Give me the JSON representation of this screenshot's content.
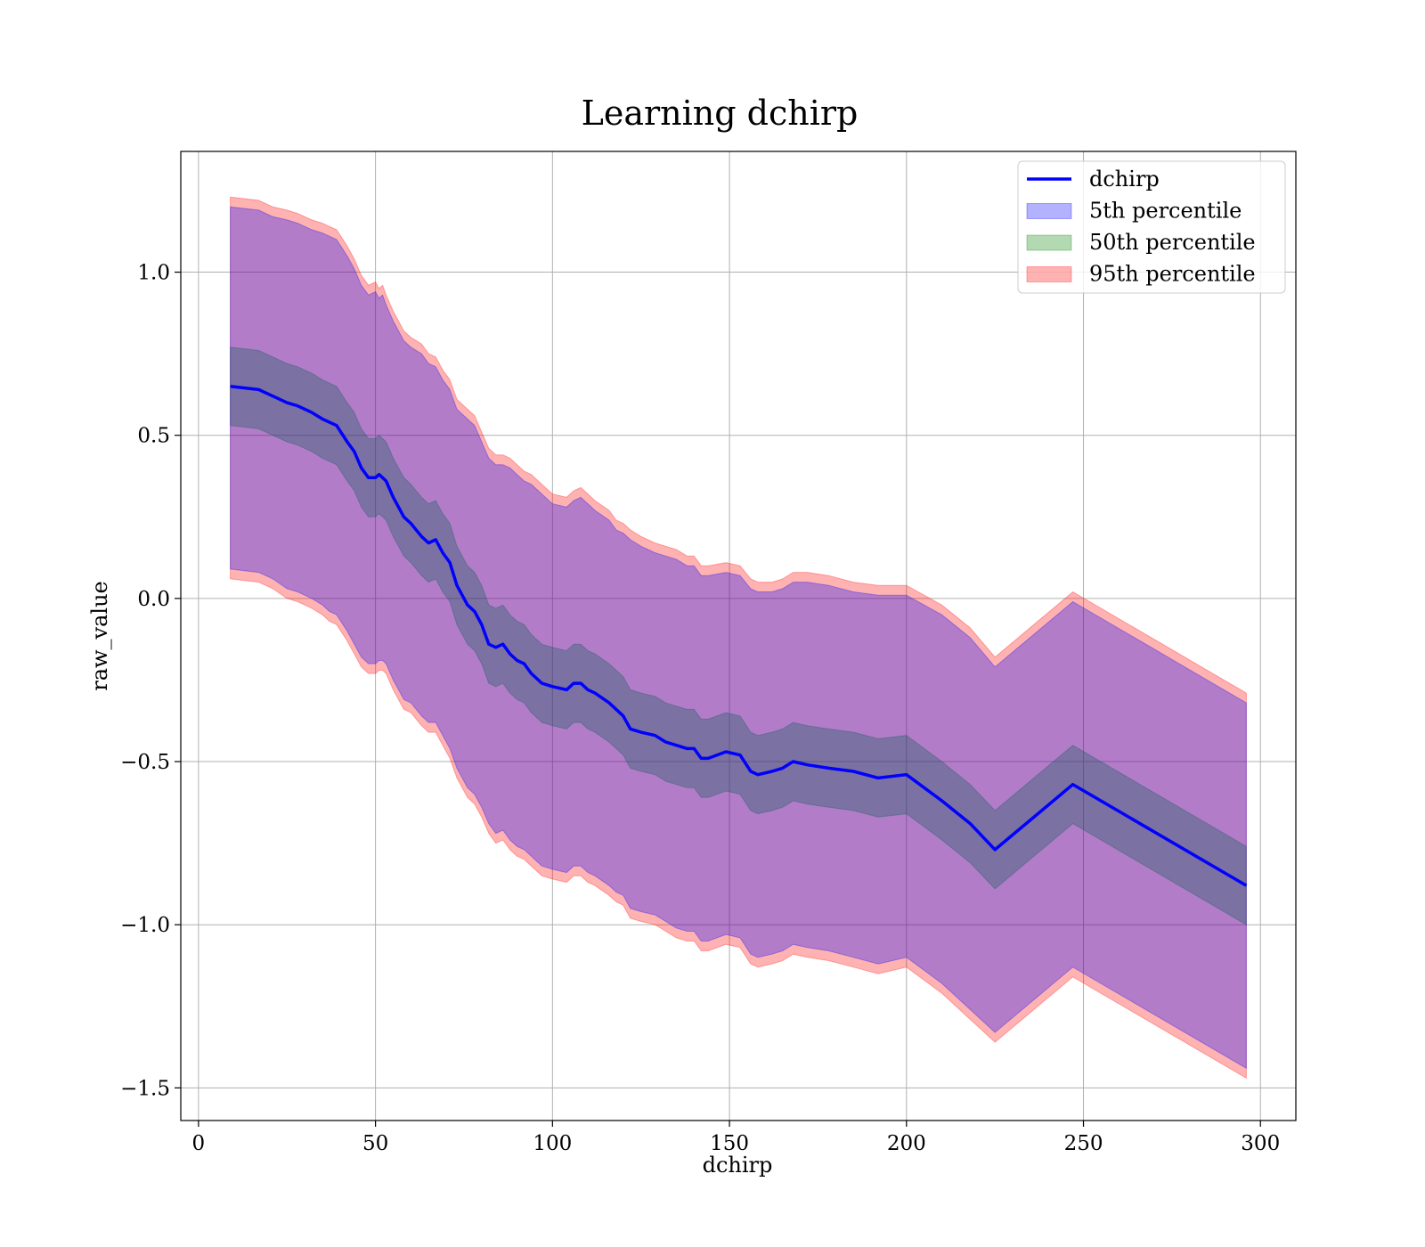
{
  "chart_data": {
    "type": "line",
    "title": "Learning dchirp",
    "xlabel": "dchirp",
    "ylabel": "raw_value",
    "xlim": [
      -5,
      310
    ],
    "ylim": [
      -1.6,
      1.37
    ],
    "xticks": [
      0,
      50,
      100,
      150,
      200,
      250,
      300
    ],
    "xtick_labels": [
      "0",
      "50",
      "100",
      "150",
      "200",
      "250",
      "300"
    ],
    "yticks": [
      1.0,
      0.5,
      0.0,
      -0.5,
      -1.0,
      -1.5
    ],
    "ytick_labels": [
      "1.0",
      "0.5",
      "0.0",
      "−0.5",
      "−1.0",
      "−1.5"
    ],
    "grid": true,
    "legend_position": "top-right",
    "legend": [
      {
        "label": "dchirp",
        "kind": "line",
        "color": "#0000ff"
      },
      {
        "label": "5th percentile",
        "kind": "patch",
        "color": "#0000ff"
      },
      {
        "label": "50th percentile",
        "kind": "patch",
        "color": "#008000"
      },
      {
        "label": "95th percentile",
        "kind": "patch",
        "color": "#ff0000"
      }
    ],
    "x": [
      9,
      17,
      21,
      25,
      28,
      32,
      35,
      37,
      39,
      42,
      44,
      46,
      48,
      50,
      51,
      52,
      53,
      55,
      56,
      58,
      60,
      63,
      65,
      67,
      69,
      71,
      73,
      76,
      78,
      80,
      82,
      84,
      86,
      88,
      90,
      92,
      94,
      97,
      100,
      104,
      106,
      108,
      110,
      112,
      116,
      118,
      120,
      122,
      125,
      129,
      132,
      135,
      138,
      140,
      142,
      144,
      149,
      153,
      156,
      158,
      162,
      165,
      168,
      172,
      178,
      185,
      192,
      200,
      210,
      218,
      225,
      247,
      296
    ],
    "series": [
      {
        "name": "dchirp",
        "kind": "line",
        "color": "#0000ff",
        "values": [
          0.65,
          0.64,
          0.62,
          0.6,
          0.59,
          0.57,
          0.55,
          0.54,
          0.53,
          0.48,
          0.45,
          0.4,
          0.37,
          0.37,
          0.38,
          0.37,
          0.36,
          0.31,
          0.29,
          0.25,
          0.23,
          0.19,
          0.17,
          0.18,
          0.14,
          0.11,
          0.04,
          -0.02,
          -0.04,
          -0.08,
          -0.14,
          -0.15,
          -0.14,
          -0.17,
          -0.19,
          -0.2,
          -0.23,
          -0.26,
          -0.27,
          -0.28,
          -0.26,
          -0.26,
          -0.28,
          -0.29,
          -0.32,
          -0.34,
          -0.36,
          -0.4,
          -0.41,
          -0.42,
          -0.44,
          -0.45,
          -0.46,
          -0.46,
          -0.49,
          -0.49,
          -0.47,
          -0.48,
          -0.53,
          -0.54,
          -0.53,
          -0.52,
          -0.5,
          -0.51,
          -0.52,
          -0.53,
          -0.55,
          -0.54,
          -0.62,
          -0.69,
          -0.77,
          -0.57,
          -0.88
        ]
      },
      {
        "name": "5th percentile",
        "kind": "band",
        "color": "#0000ff",
        "upper": [
          1.2,
          1.19,
          1.17,
          1.16,
          1.15,
          1.13,
          1.12,
          1.11,
          1.1,
          1.05,
          1.01,
          0.96,
          0.93,
          0.94,
          0.92,
          0.93,
          0.9,
          0.85,
          0.83,
          0.79,
          0.77,
          0.75,
          0.72,
          0.71,
          0.67,
          0.64,
          0.58,
          0.55,
          0.53,
          0.48,
          0.43,
          0.41,
          0.41,
          0.4,
          0.38,
          0.36,
          0.35,
          0.32,
          0.29,
          0.28,
          0.3,
          0.31,
          0.29,
          0.27,
          0.24,
          0.21,
          0.2,
          0.18,
          0.16,
          0.14,
          0.13,
          0.12,
          0.1,
          0.1,
          0.07,
          0.07,
          0.08,
          0.07,
          0.03,
          0.02,
          0.02,
          0.03,
          0.05,
          0.05,
          0.04,
          0.02,
          0.01,
          0.01,
          -0.05,
          -0.12,
          -0.21,
          -0.01,
          -0.32
        ],
        "lower": [
          0.09,
          0.08,
          0.06,
          0.03,
          0.02,
          0.0,
          -0.02,
          -0.04,
          -0.05,
          -0.1,
          -0.14,
          -0.18,
          -0.2,
          -0.2,
          -0.19,
          -0.19,
          -0.2,
          -0.25,
          -0.27,
          -0.31,
          -0.32,
          -0.36,
          -0.38,
          -0.38,
          -0.42,
          -0.46,
          -0.52,
          -0.58,
          -0.6,
          -0.64,
          -0.69,
          -0.72,
          -0.71,
          -0.74,
          -0.76,
          -0.77,
          -0.79,
          -0.82,
          -0.83,
          -0.84,
          -0.82,
          -0.82,
          -0.84,
          -0.85,
          -0.88,
          -0.9,
          -0.91,
          -0.95,
          -0.96,
          -0.97,
          -0.99,
          -1.01,
          -1.02,
          -1.02,
          -1.05,
          -1.05,
          -1.03,
          -1.04,
          -1.09,
          -1.1,
          -1.09,
          -1.08,
          -1.06,
          -1.07,
          -1.08,
          -1.1,
          -1.12,
          -1.1,
          -1.18,
          -1.26,
          -1.33,
          -1.13,
          -1.44
        ]
      },
      {
        "name": "50th percentile",
        "kind": "band",
        "color": "#008000",
        "upper": [
          0.77,
          0.76,
          0.74,
          0.72,
          0.71,
          0.69,
          0.67,
          0.66,
          0.65,
          0.6,
          0.57,
          0.52,
          0.49,
          0.49,
          0.5,
          0.49,
          0.48,
          0.43,
          0.41,
          0.37,
          0.35,
          0.31,
          0.29,
          0.3,
          0.26,
          0.23,
          0.16,
          0.1,
          0.08,
          0.04,
          -0.02,
          -0.03,
          -0.02,
          -0.05,
          -0.07,
          -0.08,
          -0.11,
          -0.14,
          -0.15,
          -0.16,
          -0.14,
          -0.14,
          -0.16,
          -0.17,
          -0.2,
          -0.22,
          -0.24,
          -0.28,
          -0.29,
          -0.3,
          -0.32,
          -0.33,
          -0.34,
          -0.34,
          -0.37,
          -0.37,
          -0.35,
          -0.36,
          -0.41,
          -0.42,
          -0.41,
          -0.4,
          -0.38,
          -0.39,
          -0.4,
          -0.41,
          -0.43,
          -0.42,
          -0.5,
          -0.57,
          -0.65,
          -0.45,
          -0.76
        ],
        "lower": [
          0.53,
          0.52,
          0.5,
          0.48,
          0.47,
          0.45,
          0.43,
          0.42,
          0.41,
          0.36,
          0.33,
          0.28,
          0.25,
          0.25,
          0.26,
          0.25,
          0.24,
          0.19,
          0.17,
          0.13,
          0.11,
          0.07,
          0.05,
          0.06,
          0.02,
          -0.01,
          -0.08,
          -0.14,
          -0.16,
          -0.2,
          -0.26,
          -0.27,
          -0.26,
          -0.29,
          -0.31,
          -0.32,
          -0.35,
          -0.38,
          -0.39,
          -0.4,
          -0.38,
          -0.38,
          -0.4,
          -0.41,
          -0.44,
          -0.46,
          -0.48,
          -0.52,
          -0.53,
          -0.54,
          -0.56,
          -0.57,
          -0.58,
          -0.58,
          -0.61,
          -0.61,
          -0.59,
          -0.6,
          -0.65,
          -0.66,
          -0.65,
          -0.64,
          -0.62,
          -0.63,
          -0.64,
          -0.65,
          -0.67,
          -0.66,
          -0.74,
          -0.81,
          -0.89,
          -0.69,
          -1.0
        ]
      },
      {
        "name": "95th percentile",
        "kind": "band",
        "color": "#ff0000",
        "upper": [
          1.23,
          1.22,
          1.2,
          1.19,
          1.18,
          1.16,
          1.15,
          1.14,
          1.13,
          1.08,
          1.04,
          0.99,
          0.96,
          0.97,
          0.95,
          0.96,
          0.93,
          0.88,
          0.86,
          0.82,
          0.8,
          0.78,
          0.75,
          0.74,
          0.7,
          0.67,
          0.61,
          0.58,
          0.56,
          0.51,
          0.46,
          0.44,
          0.44,
          0.43,
          0.41,
          0.39,
          0.38,
          0.35,
          0.32,
          0.31,
          0.33,
          0.34,
          0.32,
          0.3,
          0.27,
          0.24,
          0.23,
          0.21,
          0.19,
          0.17,
          0.16,
          0.15,
          0.13,
          0.13,
          0.1,
          0.1,
          0.11,
          0.1,
          0.06,
          0.05,
          0.05,
          0.06,
          0.08,
          0.08,
          0.07,
          0.05,
          0.04,
          0.04,
          -0.02,
          -0.09,
          -0.18,
          0.02,
          -0.29
        ],
        "lower": [
          0.06,
          0.05,
          0.03,
          0.0,
          -0.01,
          -0.03,
          -0.05,
          -0.07,
          -0.08,
          -0.13,
          -0.17,
          -0.21,
          -0.23,
          -0.23,
          -0.22,
          -0.22,
          -0.23,
          -0.28,
          -0.3,
          -0.34,
          -0.35,
          -0.39,
          -0.41,
          -0.41,
          -0.45,
          -0.49,
          -0.55,
          -0.61,
          -0.63,
          -0.67,
          -0.72,
          -0.75,
          -0.74,
          -0.77,
          -0.79,
          -0.8,
          -0.82,
          -0.85,
          -0.86,
          -0.87,
          -0.85,
          -0.85,
          -0.87,
          -0.88,
          -0.91,
          -0.93,
          -0.94,
          -0.98,
          -0.99,
          -1.0,
          -1.02,
          -1.04,
          -1.05,
          -1.05,
          -1.08,
          -1.08,
          -1.06,
          -1.07,
          -1.12,
          -1.13,
          -1.12,
          -1.11,
          -1.09,
          -1.1,
          -1.11,
          -1.13,
          -1.15,
          -1.13,
          -1.21,
          -1.29,
          -1.36,
          -1.16,
          -1.47
        ]
      }
    ]
  }
}
